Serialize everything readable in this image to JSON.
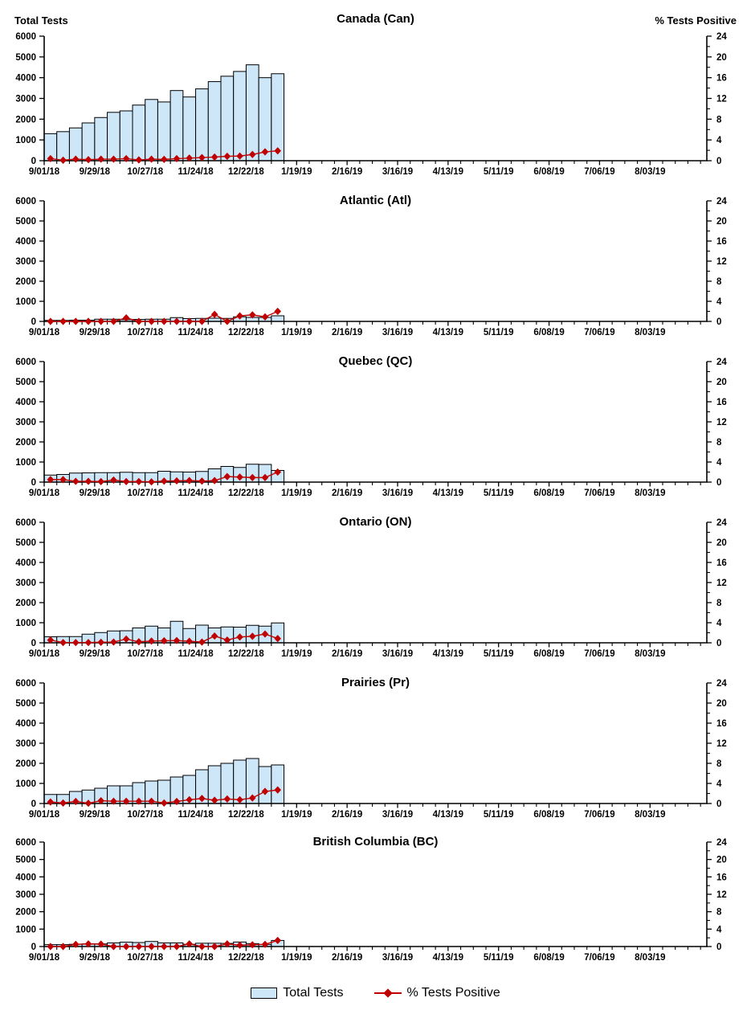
{
  "chart_data": {
    "type": "bar",
    "description": "Six stacked panels of weekly total tests (bars, left axis) with % tests positive (red diamond line, right axis)",
    "week_start_dates": [
      "9/01/18",
      "9/08/18",
      "9/15/18",
      "9/22/18",
      "9/29/18",
      "10/06/18",
      "10/13/18",
      "10/20/18",
      "10/27/18",
      "11/03/18",
      "11/10/18",
      "11/17/18",
      "11/24/18",
      "12/01/18",
      "12/08/18",
      "12/15/18",
      "12/22/18",
      "12/29/18",
      "1/05/19"
    ],
    "x_tick_labels": [
      "9/01/18",
      "9/29/18",
      "10/27/18",
      "11/24/18",
      "12/22/18",
      "1/19/19",
      "2/16/19",
      "3/16/19",
      "4/13/19",
      "5/11/19",
      "6/08/19",
      "7/06/19",
      "8/03/19"
    ],
    "x_total_weeks": 52.5,
    "left_axis": {
      "label": "Total Tests",
      "min": 0,
      "max": 6000,
      "ticks": [
        0,
        1000,
        2000,
        3000,
        4000,
        5000,
        6000
      ]
    },
    "right_axis": {
      "label": "% Tests Positive",
      "min": 0,
      "max": 24,
      "ticks": [
        0,
        4,
        8,
        12,
        16,
        20,
        24
      ],
      "minor_ticks": [
        2,
        6,
        10,
        14,
        18,
        22
      ]
    },
    "legend": {
      "bar_label": "Total Tests",
      "line_label": "% Tests Positive"
    },
    "colors": {
      "bar_fill": "#CDE6F8",
      "bar_stroke": "#000000",
      "line": "#C00000",
      "marker": "#C00000",
      "axis": "#000000",
      "text": "#000000"
    },
    "panels": [
      {
        "id": "canada",
        "title": "Canada (Can)",
        "total_tests": [
          1300,
          1400,
          1580,
          1820,
          2080,
          2330,
          2400,
          2680,
          2950,
          2830,
          3380,
          3070,
          3460,
          3810,
          4070,
          4300,
          4620,
          4000,
          4190
        ],
        "pct_positive": [
          0.4,
          0.1,
          0.3,
          0.2,
          0.3,
          0.3,
          0.4,
          0.15,
          0.3,
          0.25,
          0.4,
          0.5,
          0.6,
          0.7,
          0.85,
          0.9,
          1.2,
          1.7,
          1.9
        ]
      },
      {
        "id": "atlantic",
        "title": "Atlantic (Atl)",
        "total_tests": [
          50,
          50,
          60,
          60,
          110,
          110,
          90,
          100,
          110,
          110,
          190,
          140,
          150,
          160,
          150,
          230,
          200,
          200,
          280
        ],
        "pct_positive": [
          0,
          0,
          0,
          0,
          0,
          0,
          0.7,
          0,
          0,
          0,
          0,
          0,
          0,
          1.4,
          0,
          1.1,
          1.3,
          0.9,
          2.0
        ]
      },
      {
        "id": "quebec",
        "title": "Quebec (QC)",
        "total_tests": [
          350,
          380,
          450,
          460,
          470,
          470,
          490,
          470,
          470,
          540,
          510,
          500,
          530,
          660,
          780,
          730,
          890,
          880,
          580
        ],
        "pct_positive": [
          0.5,
          0.5,
          0.15,
          0.15,
          0.1,
          0.4,
          0.1,
          0.1,
          0.05,
          0.2,
          0.25,
          0.3,
          0.2,
          0.3,
          1.1,
          1.0,
          0.9,
          0.9,
          2.0
        ]
      },
      {
        "id": "ontario",
        "title": "Ontario (ON)",
        "total_tests": [
          300,
          310,
          310,
          430,
          510,
          590,
          600,
          740,
          830,
          740,
          1070,
          710,
          880,
          740,
          790,
          780,
          870,
          830,
          990
        ],
        "pct_positive": [
          0.55,
          0.05,
          0.05,
          0.05,
          0.1,
          0.15,
          0.75,
          0.2,
          0.35,
          0.4,
          0.45,
          0.3,
          0.15,
          1.35,
          0.55,
          1.15,
          1.3,
          1.75,
          0.85
        ]
      },
      {
        "id": "prairies",
        "title": "Prairies (Pr)",
        "total_tests": [
          450,
          450,
          600,
          670,
          760,
          880,
          880,
          1040,
          1120,
          1160,
          1320,
          1400,
          1680,
          1880,
          2000,
          2160,
          2240,
          1840,
          1920
        ],
        "pct_positive": [
          0.3,
          0.1,
          0.4,
          0.05,
          0.55,
          0.45,
          0.45,
          0.45,
          0.45,
          0.1,
          0.4,
          0.75,
          1.0,
          0.65,
          0.9,
          0.75,
          1.1,
          2.4,
          2.7
        ]
      },
      {
        "id": "british-columbia",
        "title": "British Columbia (BC)",
        "total_tests": [
          110,
          110,
          130,
          150,
          150,
          210,
          250,
          230,
          290,
          210,
          210,
          130,
          190,
          190,
          180,
          260,
          170,
          120,
          350
        ],
        "pct_positive": [
          0,
          0,
          0.5,
          0.6,
          0.55,
          0,
          0,
          0,
          0,
          0,
          0,
          0.6,
          0,
          0,
          0.6,
          0.3,
          0.4,
          0.5,
          1.4
        ]
      }
    ]
  }
}
